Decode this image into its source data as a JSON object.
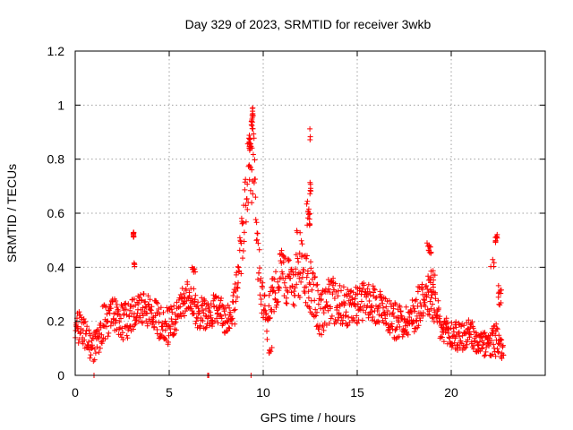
{
  "chart_data": {
    "type": "scatter",
    "title": "Day 329 of 2023, SRMTID for receiver 3wkb",
    "xlabel": "GPS time / hours",
    "ylabel": "SRMTID / TECUs",
    "xlim": [
      0,
      25
    ],
    "ylim": [
      0,
      1.2
    ],
    "xticks": [
      0,
      5,
      10,
      15,
      20
    ],
    "xtick_labels": [
      "0",
      "5",
      "10",
      "15",
      "20"
    ],
    "yticks": [
      0,
      0.2,
      0.4,
      0.6,
      0.8,
      1.0,
      1.2
    ],
    "ytick_labels": [
      "0",
      "0.2",
      "0.4",
      "0.6",
      "0.8",
      "1",
      "1.2"
    ],
    "grid": true,
    "marker": "plus",
    "color": "#ff0000",
    "series": [
      {
        "name": "SRMTID",
        "profile": [
          [
            0.0,
            0.19,
            0.05
          ],
          [
            0.3,
            0.17,
            0.06
          ],
          [
            0.6,
            0.14,
            0.05
          ],
          [
            0.9,
            0.09,
            0.04
          ],
          [
            1.2,
            0.15,
            0.08
          ],
          [
            1.5,
            0.2,
            0.06
          ],
          [
            2.0,
            0.22,
            0.06
          ],
          [
            2.5,
            0.19,
            0.06
          ],
          [
            3.0,
            0.22,
            0.06
          ],
          [
            3.5,
            0.25,
            0.05
          ],
          [
            4.0,
            0.23,
            0.06
          ],
          [
            4.5,
            0.2,
            0.06
          ],
          [
            5.0,
            0.18,
            0.06
          ],
          [
            5.5,
            0.24,
            0.05
          ],
          [
            6.0,
            0.3,
            0.05
          ],
          [
            6.5,
            0.23,
            0.06
          ],
          [
            7.0,
            0.22,
            0.05
          ],
          [
            7.5,
            0.25,
            0.05
          ],
          [
            8.0,
            0.21,
            0.05
          ],
          [
            8.5,
            0.26,
            0.06
          ],
          [
            8.8,
            0.45,
            0.08
          ],
          [
            9.1,
            0.68,
            0.12
          ],
          [
            9.3,
            0.8,
            0.12
          ],
          [
            9.5,
            0.72,
            0.15
          ],
          [
            9.7,
            0.5,
            0.12
          ],
          [
            9.9,
            0.3,
            0.06
          ],
          [
            10.2,
            0.2,
            0.06
          ],
          [
            10.5,
            0.3,
            0.07
          ],
          [
            11.0,
            0.38,
            0.08
          ],
          [
            11.5,
            0.32,
            0.08
          ],
          [
            11.8,
            0.42,
            0.12
          ],
          [
            12.2,
            0.38,
            0.1
          ],
          [
            12.6,
            0.3,
            0.1
          ],
          [
            13.0,
            0.22,
            0.07
          ],
          [
            13.5,
            0.28,
            0.08
          ],
          [
            14.0,
            0.27,
            0.07
          ],
          [
            14.5,
            0.25,
            0.06
          ],
          [
            15.0,
            0.26,
            0.06
          ],
          [
            15.5,
            0.28,
            0.06
          ],
          [
            16.0,
            0.26,
            0.06
          ],
          [
            16.5,
            0.24,
            0.06
          ],
          [
            17.0,
            0.2,
            0.06
          ],
          [
            17.5,
            0.2,
            0.05
          ],
          [
            18.0,
            0.22,
            0.06
          ],
          [
            18.5,
            0.3,
            0.08
          ],
          [
            19.0,
            0.28,
            0.07
          ],
          [
            19.5,
            0.16,
            0.05
          ],
          [
            20.0,
            0.15,
            0.05
          ],
          [
            20.5,
            0.14,
            0.05
          ],
          [
            21.0,
            0.15,
            0.05
          ],
          [
            21.5,
            0.12,
            0.04
          ],
          [
            22.0,
            0.11,
            0.04
          ],
          [
            22.4,
            0.13,
            0.06
          ],
          [
            22.8,
            0.08,
            0.02
          ]
        ],
        "features": [
          [
            3.1,
            0.52,
            0.01,
            0.01,
            12
          ],
          [
            3.15,
            0.4,
            0.02,
            0.02,
            5
          ],
          [
            9.42,
            0.95,
            0.05,
            0.04,
            16
          ],
          [
            9.3,
            0.86,
            0.06,
            0.03,
            14
          ],
          [
            12.5,
            0.89,
            0.02,
            0.03,
            3
          ],
          [
            12.4,
            0.6,
            0.1,
            0.05,
            14
          ],
          [
            12.5,
            0.7,
            0.05,
            0.03,
            6
          ],
          [
            18.8,
            0.46,
            0.2,
            0.03,
            10
          ],
          [
            19.0,
            0.36,
            0.2,
            0.03,
            8
          ],
          [
            22.4,
            0.52,
            0.05,
            0.04,
            9
          ],
          [
            22.6,
            0.3,
            0.1,
            0.05,
            10
          ],
          [
            22.2,
            0.42,
            0.1,
            0.02,
            4
          ],
          [
            6.3,
            0.38,
            0.1,
            0.02,
            8
          ],
          [
            10.4,
            0.1,
            0.1,
            0.02,
            6
          ]
        ],
        "zeros": [
          [
            1.0,
            0
          ],
          [
            7.05,
            0
          ],
          [
            7.1,
            0
          ],
          [
            9.35,
            0
          ]
        ],
        "x_step": 0.018
      }
    ]
  }
}
